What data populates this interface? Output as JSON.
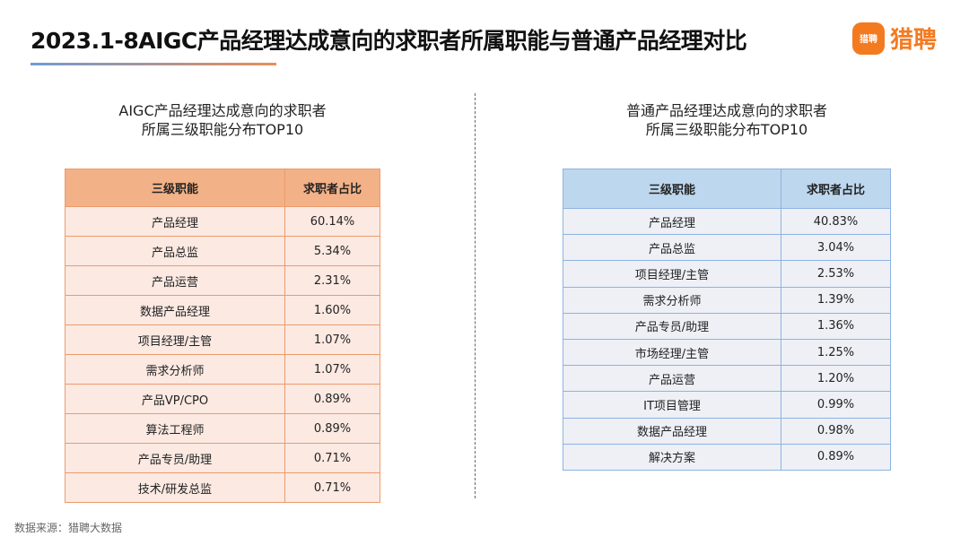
{
  "title": "2023.1-8AIGC产品经理达成意向的求职者所属职能与普通产品经理对比",
  "logo": {
    "icon_text": "猎聘",
    "text": "猎聘"
  },
  "left": {
    "subtitle1": "AIGC产品经理达成意向的求职者",
    "subtitle2": "所属三级职能分布TOP10",
    "headers": [
      "三级职能",
      "求职者占比"
    ],
    "rows": [
      [
        "产品经理",
        "60.14%"
      ],
      [
        "产品总监",
        "5.34%"
      ],
      [
        "产品运营",
        "2.31%"
      ],
      [
        "数据产品经理",
        "1.60%"
      ],
      [
        "项目经理/主管",
        "1.07%"
      ],
      [
        "需求分析师",
        "1.07%"
      ],
      [
        "产品VP/CPO",
        "0.89%"
      ],
      [
        "算法工程师",
        "0.89%"
      ],
      [
        "产品专员/助理",
        "0.71%"
      ],
      [
        "技术/研发总监",
        "0.71%"
      ]
    ]
  },
  "right": {
    "subtitle1": "普通产品经理达成意向的求职者",
    "subtitle2": "所属三级职能分布TOP10",
    "headers": [
      "三级职能",
      "求职者占比"
    ],
    "rows": [
      [
        "产品经理",
        "40.83%"
      ],
      [
        "产品总监",
        "3.04%"
      ],
      [
        "项目经理/主管",
        "2.53%"
      ],
      [
        "需求分析师",
        "1.39%"
      ],
      [
        "产品专员/助理",
        "1.36%"
      ],
      [
        "市场经理/主管",
        "1.25%"
      ],
      [
        "产品运营",
        "1.20%"
      ],
      [
        "IT项目管理",
        "0.99%"
      ],
      [
        "数据产品经理",
        "0.98%"
      ],
      [
        "解决方案",
        "0.89%"
      ]
    ]
  },
  "source": "数据来源：猎聘大数据"
}
